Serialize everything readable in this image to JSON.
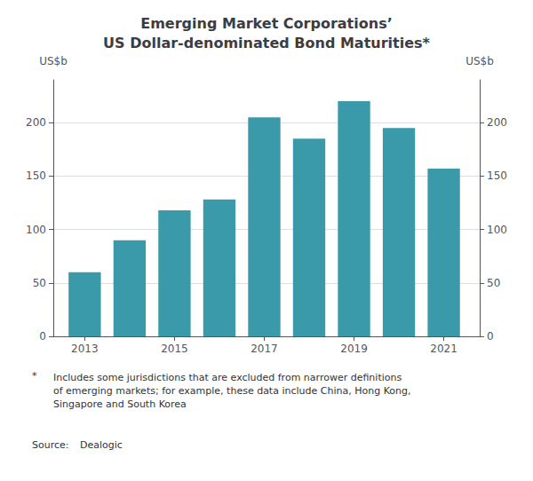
{
  "chart_data": {
    "type": "bar",
    "title": "Emerging Market Corporations’\nUS Dollar-denominated Bond Maturities*",
    "x": [
      2013,
      2014,
      2015,
      2016,
      2017,
      2018,
      2019,
      2020,
      2021
    ],
    "values": [
      60,
      90,
      118,
      128,
      205,
      185,
      220,
      195,
      157
    ],
    "color": "#3a9aaa",
    "xlim": [
      2012.3,
      2021.8
    ],
    "xticks": [
      2013,
      2015,
      2017,
      2019,
      2021
    ],
    "ylim": [
      0,
      240
    ],
    "yticks": [
      0,
      50,
      100,
      150,
      200
    ],
    "y2lim": [
      0,
      240
    ],
    "y2ticks": [
      0,
      50,
      100,
      150,
      200
    ],
    "ylabel": "US$b",
    "y2label": "US$b",
    "grid": true,
    "annotations": [
      "*",
      "Includes some jurisdictions that are excluded from narrower definitions\nof emerging markets; for example, these data include China, Hong Kong,\nSingapore and South Korea",
      "Source:",
      "Dealogic"
    ]
  }
}
